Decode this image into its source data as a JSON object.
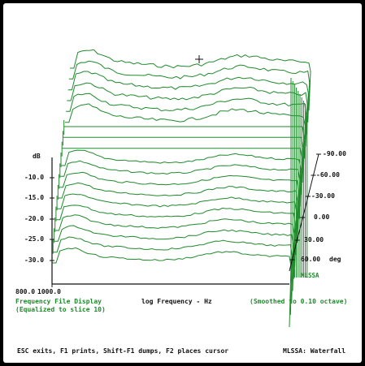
{
  "chart_data": {
    "type": "line",
    "title": "",
    "ylabel": "dB",
    "xlabel": "log Frequency - Hz",
    "y_ticks": [
      "-10.0",
      "-15.0",
      "-20.0",
      "-25.0",
      "-30.0"
    ],
    "x_ticks": [
      "800.0",
      "1000.0"
    ],
    "angle_label": "deg",
    "angle_ticks": [
      "-90.00",
      "-60.00",
      "-30.00",
      "0.00",
      "30.00",
      "60.00"
    ],
    "slice_count": 19,
    "series_color": "#1e8a2a",
    "axis_color": "#111111"
  },
  "footer": {
    "display_name": "Frequency File Display",
    "equalized": "(Equalized to slice 10)",
    "smoothing": "(Smoothed to 0.10 octave)",
    "watermark": "MLSSA"
  },
  "status_bar": {
    "help": "ESC exits, F1 prints, Shift-F1 dumps, F2 places cursor",
    "mode": "MLSSA: Waterfall"
  }
}
